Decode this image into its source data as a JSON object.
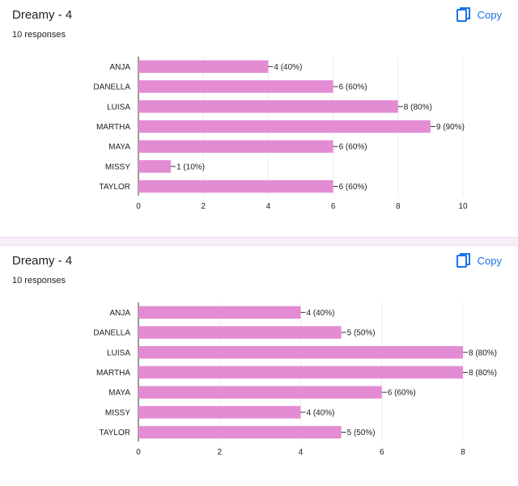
{
  "colors": {
    "bar": "#e38cd4",
    "accent": "#1a73e8",
    "grid": "#eeeeee",
    "axis": "#333333"
  },
  "cards": [
    {
      "title": "Dreamy - 4",
      "subtitle": "10 responses",
      "copy_label": "Copy",
      "copy_icon": "copy-icon"
    },
    {
      "title": "Dreamy - 4",
      "subtitle": "10 responses",
      "copy_label": "Copy",
      "copy_icon": "copy-icon"
    }
  ],
  "chart_data": [
    {
      "type": "bar",
      "orientation": "horizontal",
      "categories": [
        "ANJA",
        "DANELLA",
        "LUISA",
        "MARTHA",
        "MAYA",
        "MISSY",
        "TAYLOR"
      ],
      "values": [
        4,
        6,
        8,
        9,
        6,
        1,
        6
      ],
      "value_labels": [
        "4 (40%)",
        "6 (60%)",
        "8 (80%)",
        "9 (90%)",
        "6 (60%)",
        "1 (10%)",
        "6 (60%)"
      ],
      "xticks": [
        "0",
        "2",
        "4",
        "6",
        "8",
        "10"
      ],
      "xlim": [
        0,
        10
      ],
      "grid": true
    },
    {
      "type": "bar",
      "orientation": "horizontal",
      "categories": [
        "ANJA",
        "DANELLA",
        "LUISA",
        "MARTHA",
        "MAYA",
        "MISSY",
        "TAYLOR"
      ],
      "values": [
        4,
        5,
        8,
        8,
        6,
        4,
        5
      ],
      "value_labels": [
        "4 (40%)",
        "5 (50%)",
        "8 (80%)",
        "8 (80%)",
        "6 (60%)",
        "4 (40%)",
        "5 (50%)"
      ],
      "xticks": [
        "0",
        "2",
        "4",
        "6",
        "8"
      ],
      "xlim": [
        0,
        8
      ],
      "grid": true
    }
  ]
}
